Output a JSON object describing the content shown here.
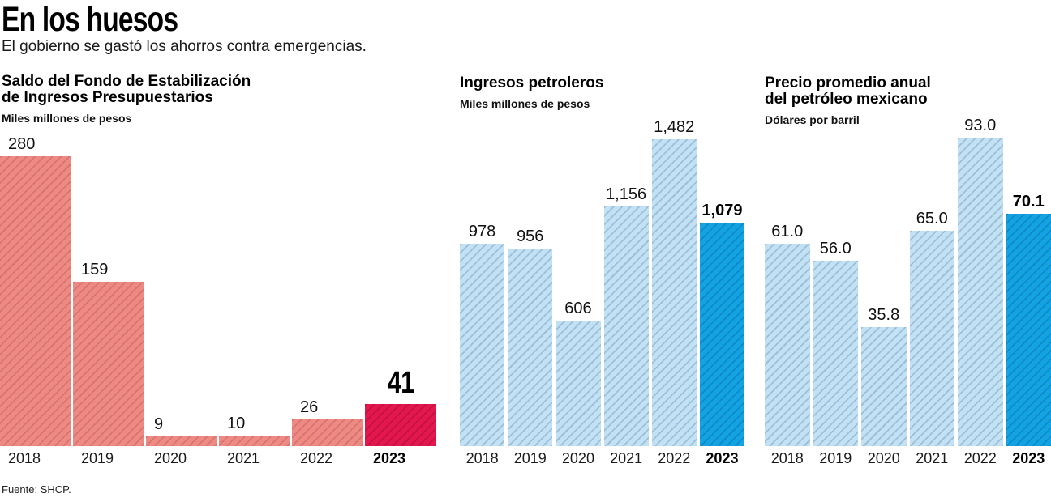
{
  "header": {
    "title": "En los huesos",
    "subtitle": "El gobierno se gastó los ahorros contra emergencias."
  },
  "source": "Fuente: SHCP.",
  "chart_data": [
    {
      "type": "bar",
      "title_lines": [
        "Saldo del Fondo de Estabilización",
        "de Ingresos Presupuestarios"
      ],
      "unit": "Miles millones de pesos",
      "categories": [
        "2018",
        "2019",
        "2020",
        "2021",
        "2022",
        "2023"
      ],
      "values": [
        280,
        159,
        9,
        10,
        26,
        41
      ],
      "labels": [
        "280",
        "159",
        "9",
        "10",
        "26",
        "41"
      ],
      "highlight_index": 5,
      "ylim": [
        0,
        280
      ],
      "grid": false,
      "legend": "none",
      "colors": {
        "bar": "#ee8a84",
        "stripe": "#d97370",
        "highlight": "#e3164e",
        "highlight_stripe": "#c2123f"
      }
    },
    {
      "type": "bar",
      "title_lines": [
        "Ingresos petroleros"
      ],
      "unit": "Miles millones de pesos",
      "categories": [
        "2018",
        "2019",
        "2020",
        "2021",
        "2022",
        "2023"
      ],
      "values": [
        978,
        956,
        606,
        1156,
        1482,
        1079
      ],
      "labels": [
        "978",
        "956",
        "606",
        "1,156",
        "1,482",
        "1,079"
      ],
      "highlight_index": 5,
      "ylim": [
        0,
        1482
      ],
      "grid": false,
      "legend": "none",
      "colors": {
        "bar": "#c3e1f4",
        "stripe": "#9cc0d8",
        "highlight": "#13a2e2",
        "highlight_stripe": "#0e8bc7"
      }
    },
    {
      "type": "bar",
      "title_lines": [
        "Precio promedio anual",
        "del petróleo mexicano"
      ],
      "unit": "Dólares por barril",
      "categories": [
        "2018",
        "2019",
        "2020",
        "2021",
        "2022",
        "2023"
      ],
      "values": [
        61.0,
        56.0,
        35.8,
        65.0,
        93.0,
        70.1
      ],
      "labels": [
        "61.0",
        "56.0",
        "35.8",
        "65.0",
        "93.0",
        "70.1"
      ],
      "highlight_index": 5,
      "ylim": [
        0,
        93
      ],
      "grid": false,
      "legend": "none",
      "colors": {
        "bar": "#c3e1f4",
        "stripe": "#9cc0d8",
        "highlight": "#13a2e2",
        "highlight_stripe": "#0e8bc7"
      }
    }
  ]
}
